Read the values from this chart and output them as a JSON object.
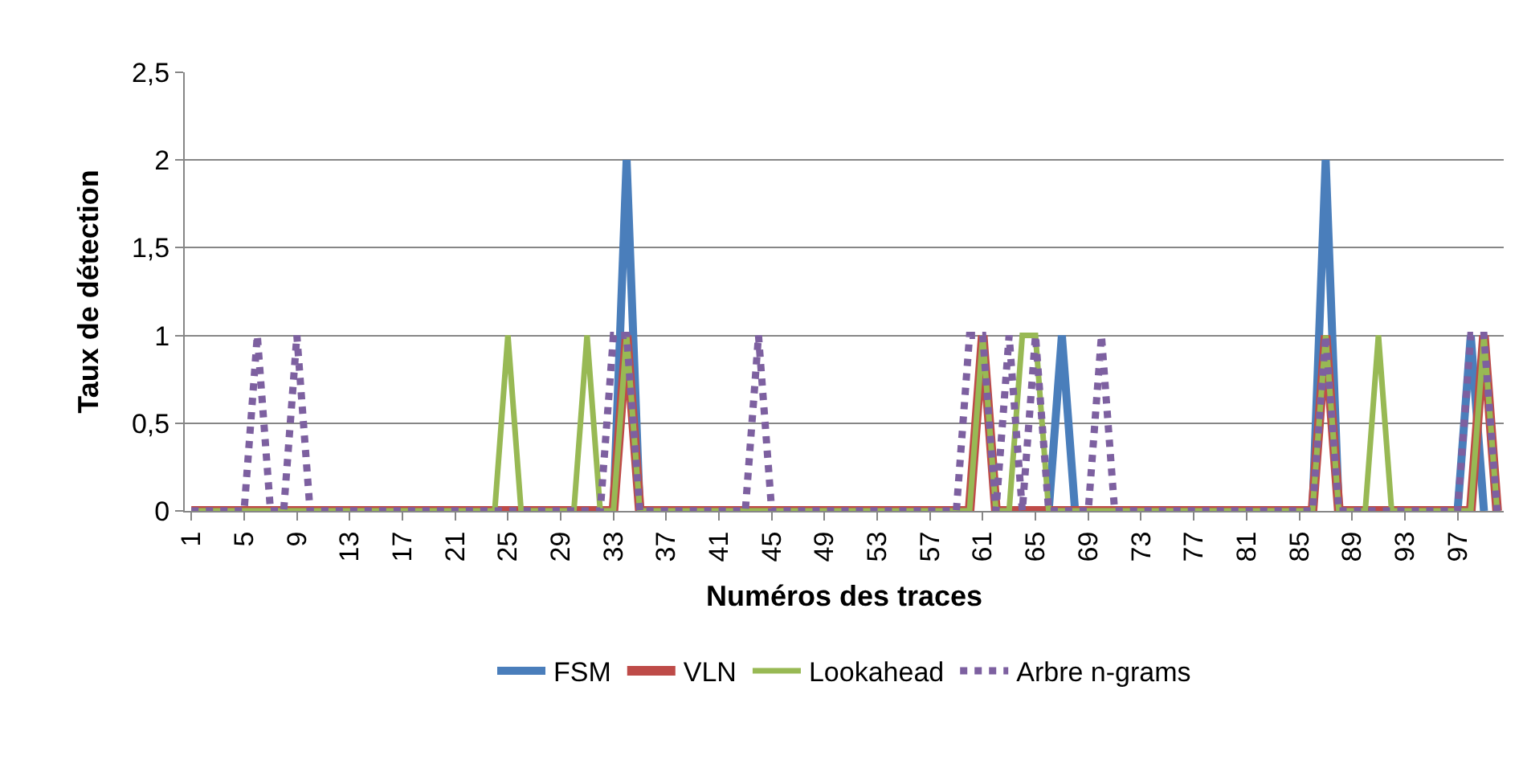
{
  "chart_data": {
    "type": "line",
    "xlabel": "Numéros des traces",
    "ylabel": "Taux de détection",
    "x": [
      1,
      2,
      3,
      4,
      5,
      6,
      7,
      8,
      9,
      10,
      11,
      12,
      13,
      14,
      15,
      16,
      17,
      18,
      19,
      20,
      21,
      22,
      23,
      24,
      25,
      26,
      27,
      28,
      29,
      30,
      31,
      32,
      33,
      34,
      35,
      36,
      37,
      38,
      39,
      40,
      41,
      42,
      43,
      44,
      45,
      46,
      47,
      48,
      49,
      50,
      51,
      52,
      53,
      54,
      55,
      56,
      57,
      58,
      59,
      60,
      61,
      62,
      63,
      64,
      65,
      66,
      67,
      68,
      69,
      70,
      71,
      72,
      73,
      74,
      75,
      76,
      77,
      78,
      79,
      80,
      81,
      82,
      83,
      84,
      85,
      86,
      87,
      88,
      89,
      90,
      91,
      92,
      93,
      94,
      95,
      96,
      97,
      98,
      99,
      100
    ],
    "xlim": [
      0.5,
      100.5
    ],
    "xticks": [
      1,
      5,
      9,
      13,
      17,
      21,
      25,
      29,
      33,
      37,
      41,
      45,
      49,
      53,
      57,
      61,
      65,
      69,
      73,
      77,
      81,
      85,
      89,
      93,
      97
    ],
    "ylim": [
      0,
      2.5
    ],
    "yticks": [
      0,
      {
        "value": 0.5,
        "label": "0,5"
      },
      1,
      {
        "value": 1.5,
        "label": "1,5"
      },
      2,
      {
        "value": 2.5,
        "label": "2,5"
      }
    ],
    "grid": "y",
    "legend": "bottom",
    "marker": "none",
    "series": [
      {
        "name": "FSM",
        "color": "#4a7ebb",
        "line_style": "solid",
        "values": [
          null,
          null,
          null,
          null,
          null,
          null,
          null,
          null,
          null,
          null,
          null,
          null,
          null,
          null,
          null,
          null,
          null,
          null,
          null,
          null,
          null,
          null,
          null,
          null,
          null,
          null,
          null,
          null,
          null,
          null,
          null,
          null,
          0,
          2,
          0,
          null,
          null,
          null,
          null,
          null,
          null,
          null,
          null,
          null,
          null,
          null,
          null,
          null,
          null,
          null,
          null,
          null,
          null,
          null,
          null,
          null,
          null,
          null,
          null,
          null,
          null,
          null,
          null,
          null,
          null,
          0,
          1,
          0,
          null,
          null,
          null,
          null,
          null,
          null,
          null,
          null,
          null,
          null,
          null,
          null,
          null,
          null,
          null,
          null,
          null,
          0,
          2,
          0,
          null,
          null,
          null,
          null,
          null,
          null,
          null,
          null,
          0,
          1,
          0,
          null
        ]
      },
      {
        "name": "VLN",
        "color": "#be4b48",
        "line_style": "solid",
        "values": [
          0,
          0,
          0,
          0,
          0,
          0,
          0,
          0,
          0,
          0,
          0,
          0,
          0,
          0,
          0,
          0,
          0,
          0,
          0,
          0,
          0,
          0,
          0,
          0,
          0,
          0,
          0,
          0,
          0,
          0,
          0,
          0,
          0,
          1,
          0,
          0,
          0,
          0,
          0,
          0,
          0,
          0,
          0,
          0,
          0,
          0,
          0,
          0,
          0,
          0,
          0,
          0,
          0,
          0,
          0,
          0,
          0,
          0,
          0,
          0,
          1,
          0,
          0,
          0,
          0,
          0,
          0,
          0,
          0,
          0,
          0,
          0,
          0,
          0,
          0,
          0,
          0,
          0,
          0,
          0,
          0,
          0,
          0,
          0,
          0,
          0,
          1,
          0,
          0,
          0,
          0,
          0,
          0,
          0,
          0,
          0,
          0,
          0,
          1,
          0
        ]
      },
      {
        "name": "Lookahead",
        "color": "#98b954",
        "line_style": "solid",
        "values": [
          0,
          0,
          0,
          0,
          0,
          0,
          0,
          0,
          0,
          0,
          0,
          0,
          0,
          0,
          0,
          0,
          0,
          0,
          0,
          0,
          0,
          0,
          0,
          0,
          1,
          0,
          0,
          0,
          0,
          0,
          1,
          0,
          0,
          1,
          0,
          0,
          0,
          0,
          0,
          0,
          0,
          0,
          0,
          0,
          0,
          0,
          0,
          0,
          0,
          0,
          0,
          0,
          0,
          0,
          0,
          0,
          0,
          0,
          0,
          0,
          1,
          0,
          0,
          1,
          1,
          0,
          0,
          0,
          0,
          0,
          0,
          0,
          0,
          0,
          0,
          0,
          0,
          0,
          0,
          0,
          0,
          0,
          0,
          0,
          0,
          0,
          1,
          0,
          0,
          0,
          1,
          0,
          0,
          0,
          0,
          0,
          0,
          0,
          1,
          0
        ]
      },
      {
        "name": "Arbre n-grams",
        "color": "#7d60a0",
        "line_style": "dotted",
        "values": [
          0,
          0,
          0,
          0,
          0,
          1,
          0,
          0,
          1,
          0,
          0,
          0,
          0,
          0,
          0,
          0,
          0,
          0,
          0,
          0,
          0,
          0,
          0,
          0,
          0,
          0,
          0,
          0,
          0,
          0,
          0,
          0,
          1,
          1,
          0,
          0,
          0,
          0,
          0,
          0,
          0,
          0,
          0,
          1,
          0,
          0,
          0,
          0,
          0,
          0,
          0,
          0,
          0,
          0,
          0,
          0,
          0,
          0,
          0,
          1,
          1,
          0,
          1,
          0,
          1,
          0,
          0,
          0,
          0,
          1,
          0,
          0,
          0,
          0,
          0,
          0,
          0,
          0,
          0,
          0,
          0,
          0,
          0,
          0,
          0,
          0,
          1,
          0,
          0,
          0,
          0,
          0,
          0,
          0,
          0,
          0,
          0,
          1,
          1,
          0
        ]
      }
    ]
  }
}
